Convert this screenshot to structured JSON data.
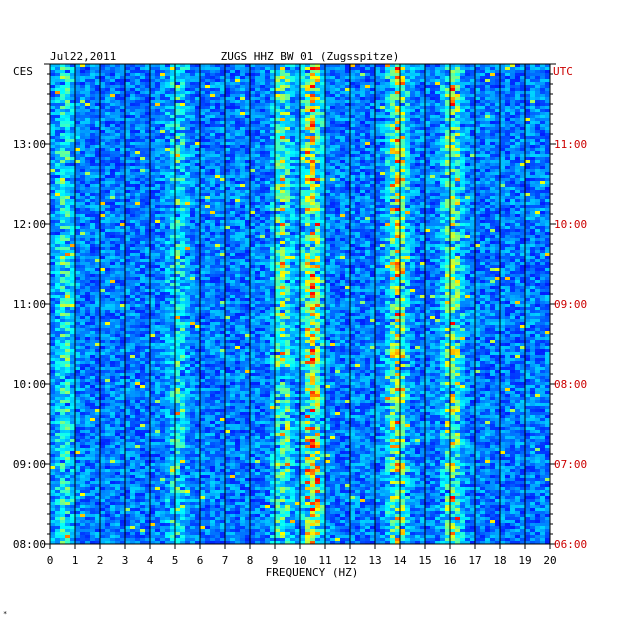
{
  "header": {
    "date": "Jul22,2011",
    "station": "ZUGS HHZ BW 01 (Zugsspitze)"
  },
  "chart_data": {
    "type": "heatmap",
    "title": "ZUGS HHZ BW 01 (Zugsspitze)",
    "date": "Jul22,2011",
    "xlabel": "FREQUENCY (HZ)",
    "xlim": [
      0,
      20
    ],
    "x_ticks": [
      "0",
      "1",
      "2",
      "3",
      "4",
      "5",
      "6",
      "7",
      "8",
      "9",
      "10",
      "11",
      "12",
      "13",
      "14",
      "15",
      "16",
      "17",
      "18",
      "19",
      "20"
    ],
    "left_axis_label": "CES",
    "right_axis_label": "UTC",
    "left_time_ticks": [
      "13:00",
      "12:00",
      "11:00",
      "10:00",
      "09:00",
      "08:00"
    ],
    "right_time_ticks": [
      "11:00",
      "10:00",
      "09:00",
      "08:00",
      "07:00",
      "06:00"
    ],
    "time_range_ces": [
      "08:00",
      "14:00"
    ],
    "grid": true,
    "colormap": [
      "#000080",
      "#0000ff",
      "#00ffff",
      "#ffff00",
      "#ff0000"
    ],
    "energy_bands_hz": [
      {
        "center": 10.5,
        "strength": 0.9
      },
      {
        "center": 9.3,
        "strength": 0.55
      },
      {
        "center": 13.9,
        "strength": 0.75
      },
      {
        "center": 16.1,
        "strength": 0.6
      },
      {
        "center": 5.1,
        "strength": 0.35
      },
      {
        "center": 0.6,
        "strength": 0.35
      }
    ]
  },
  "footnote": "*"
}
